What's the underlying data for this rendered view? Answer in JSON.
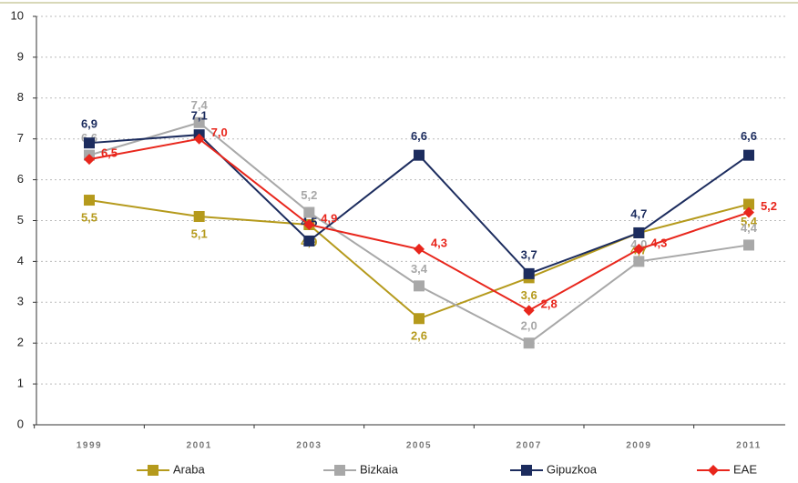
{
  "chart_data": {
    "type": "line",
    "categories": [
      "1999",
      "2001",
      "2003",
      "2005",
      "2007",
      "2009",
      "2011"
    ],
    "ylim": [
      0,
      10
    ],
    "yticks": [
      0,
      1,
      2,
      3,
      4,
      5,
      6,
      7,
      8,
      9,
      10
    ],
    "grid": true,
    "legend": "bottom",
    "series": [
      {
        "name": "Araba",
        "color": "#b59a1c",
        "marker": "square",
        "values": [
          5.5,
          5.1,
          4.9,
          2.6,
          3.6,
          4.7,
          5.4
        ],
        "value_labels": [
          "5,5",
          "5,1",
          "4,9",
          "2,6",
          "3,6",
          "4,7",
          "5,4"
        ]
      },
      {
        "name": "Bizkaia",
        "color": "#a8a8a8",
        "marker": "square",
        "values": [
          6.6,
          7.4,
          5.2,
          3.4,
          2.0,
          4.0,
          4.4
        ],
        "value_labels": [
          "6,6",
          "7,4",
          "5,2",
          "3,4",
          "2,0",
          "4,0",
          "4,4"
        ]
      },
      {
        "name": "Gipuzkoa",
        "color": "#1c2c5e",
        "marker": "square",
        "values": [
          6.9,
          7.1,
          4.5,
          6.6,
          3.7,
          4.7,
          6.6
        ],
        "value_labels": [
          "6,9",
          "7,1",
          "4,5",
          "6,6",
          "3,7",
          "4,7",
          "6,6"
        ]
      },
      {
        "name": "EAE",
        "color": "#e8261c",
        "marker": "diamond",
        "values": [
          6.5,
          7.0,
          4.9,
          4.3,
          2.8,
          4.3,
          5.2
        ],
        "value_labels": [
          "6,5",
          "7,0",
          "4,9",
          "4,3",
          "2,8",
          "4,3",
          "5,2"
        ]
      }
    ]
  }
}
